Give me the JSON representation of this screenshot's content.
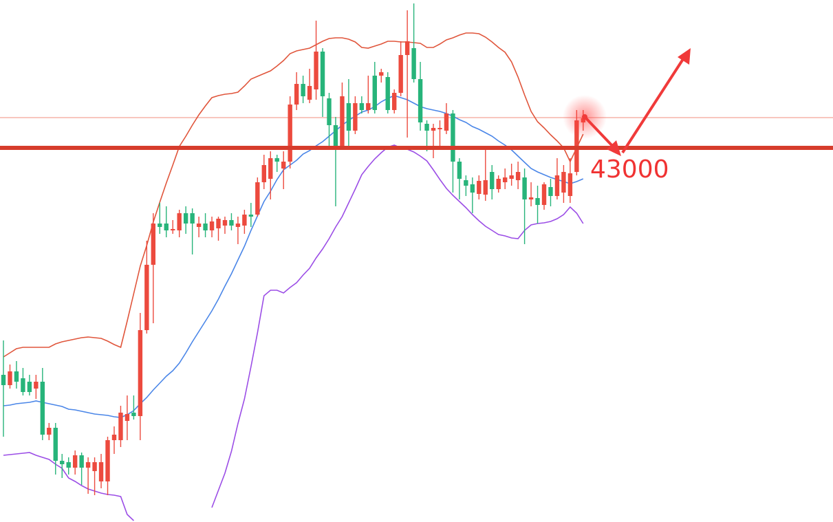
{
  "chart_data": {
    "type": "candlestick",
    "open": [
      39700,
      39550,
      39750,
      39650,
      39600,
      39500,
      39600,
      38830,
      38930,
      38450,
      38430,
      38350,
      38530,
      38350,
      38300,
      38150,
      38150,
      38750,
      38750,
      39030,
      39150,
      39100,
      40350,
      41300,
      41900,
      41900,
      41800,
      41800,
      42050,
      42050,
      41850,
      41900,
      41800,
      41830,
      41870,
      41950,
      41850,
      41870,
      42030,
      42030,
      42500,
      42550,
      42850,
      42700,
      42800,
      43630,
      43930,
      43700,
      43850,
      44400,
      43720,
      43330,
      43030,
      43650,
      43250,
      43650,
      43550,
      44050,
      44050,
      44030,
      43550,
      43800,
      44350,
      44450,
      44000,
      43350,
      43250,
      43270,
      43250,
      43500,
      42800,
      42530,
      42470,
      42330,
      42320,
      42650,
      42400,
      42500,
      42550,
      42530,
      42570,
      42250,
      42270,
      42170,
      42430,
      42300,
      42350,
      42300,
      42650,
      43370
    ],
    "high": [
      40200,
      39850,
      39900,
      39800,
      39700,
      39700,
      39800,
      39000,
      39000,
      38550,
      38500,
      38600,
      38570,
      38500,
      38500,
      38550,
      38800,
      38950,
      39250,
      39400,
      39400,
      40600,
      41650,
      42050,
      42200,
      42150,
      41950,
      42100,
      42150,
      42120,
      42000,
      42050,
      42000,
      42000,
      42000,
      42050,
      42000,
      42100,
      42200,
      42570,
      42900,
      42950,
      42900,
      42950,
      43750,
      44100,
      44050,
      44150,
      44850,
      44450,
      43800,
      43450,
      43950,
      44000,
      43750,
      43750,
      44050,
      44250,
      44150,
      44100,
      43850,
      44550,
      45000,
      45100,
      44250,
      43400,
      43350,
      43400,
      43650,
      43550,
      42850,
      42600,
      42570,
      42600,
      42970,
      42750,
      42600,
      42700,
      42770,
      42800,
      42700,
      42500,
      42450,
      42500,
      42550,
      42850,
      42750,
      42850,
      43550,
      43550
    ],
    "low": [
      38800,
      39500,
      39500,
      39400,
      39400,
      39350,
      38750,
      38750,
      38250,
      38200,
      38250,
      38250,
      38100,
      37970,
      37950,
      38050,
      37950,
      38550,
      38650,
      38750,
      39050,
      38750,
      40300,
      40450,
      41750,
      41700,
      41750,
      41700,
      41750,
      41450,
      41700,
      41700,
      41700,
      41650,
      41750,
      41800,
      41600,
      41750,
      41850,
      42000,
      42400,
      42250,
      42650,
      42400,
      42700,
      43550,
      43650,
      43650,
      43700,
      43450,
      43000,
      42150,
      42970,
      43000,
      43200,
      43500,
      43500,
      43500,
      43950,
      43500,
      43500,
      43750,
      43150,
      43950,
      43250,
      42950,
      42850,
      43000,
      43200,
      42350,
      42250,
      42300,
      42050,
      42250,
      42230,
      42250,
      42350,
      42400,
      42450,
      42400,
      41600,
      42150,
      41900,
      42100,
      42150,
      42250,
      42200,
      42200,
      42600,
      43250
    ],
    "close": [
      39550,
      39750,
      39600,
      39450,
      39450,
      39600,
      38830,
      38930,
      38450,
      38400,
      38350,
      38530,
      38350,
      38430,
      38430,
      38430,
      38750,
      38830,
      39150,
      39130,
      39100,
      40350,
      41300,
      41900,
      41850,
      41800,
      41820,
      42050,
      41900,
      41900,
      41900,
      41800,
      41930,
      41970,
      41950,
      41870,
      41900,
      42030,
      42000,
      42500,
      42750,
      42850,
      42800,
      42800,
      43630,
      43930,
      43750,
      43900,
      44400,
      43750,
      43330,
      43030,
      43750,
      43250,
      43650,
      43550,
      43650,
      43550,
      44100,
      43550,
      43800,
      44350,
      44550,
      44000,
      43370,
      43250,
      43290,
      43290,
      43500,
      42800,
      42550,
      42450,
      42350,
      42520,
      42530,
      42400,
      42550,
      42570,
      42600,
      42650,
      42250,
      42280,
      42170,
      42470,
      42300,
      42600,
      42650,
      42630,
      43400,
      43430
    ],
    "up_color": "#ec4a3e",
    "down_color": "#27b47a",
    "series": [
      {
        "color": "#e0553b",
        "values": [
          39960,
          40020,
          40080,
          40100,
          40100,
          40100,
          40100,
          40100,
          40150,
          40180,
          40200,
          40220,
          40240,
          40250,
          40240,
          40230,
          40190,
          40140,
          40100,
          40480,
          40880,
          41280,
          41580,
          41920,
          42210,
          42490,
          42750,
          43020,
          43170,
          43330,
          43480,
          43610,
          43730,
          43760,
          43780,
          43790,
          43810,
          43900,
          44000,
          44040,
          44080,
          44120,
          44190,
          44270,
          44370,
          44410,
          44430,
          44450,
          44500,
          44550,
          44590,
          44600,
          44600,
          44580,
          44540,
          44460,
          44450,
          44480,
          44510,
          44550,
          44550,
          44540,
          44540,
          44530,
          44520,
          44460,
          44460,
          44510,
          44570,
          44600,
          44640,
          44670,
          44670,
          44660,
          44610,
          44540,
          44460,
          44390,
          44250,
          44030,
          43770,
          43530,
          43380,
          43290,
          43190,
          43100,
          43000,
          42800,
          43000,
          43200
        ]
      },
      {
        "color": "#4a86e8",
        "values": [
          39250,
          39260,
          39280,
          39290,
          39300,
          39320,
          39300,
          39280,
          39260,
          39240,
          39200,
          39190,
          39170,
          39150,
          39130,
          39120,
          39110,
          39090,
          39080,
          39120,
          39180,
          39280,
          39370,
          39480,
          39580,
          39680,
          39760,
          39870,
          40020,
          40180,
          40330,
          40480,
          40630,
          40800,
          40990,
          41170,
          41370,
          41570,
          41800,
          42010,
          42220,
          42370,
          42540,
          42680,
          42750,
          42820,
          42910,
          42960,
          43030,
          43090,
          43170,
          43250,
          43330,
          43400,
          43460,
          43520,
          43550,
          43600,
          43670,
          43720,
          43760,
          43730,
          43700,
          43650,
          43600,
          43570,
          43550,
          43530,
          43500,
          43460,
          43410,
          43370,
          43310,
          43270,
          43220,
          43170,
          43100,
          43040,
          42970,
          42880,
          42790,
          42700,
          42650,
          42610,
          42570,
          42540,
          42510,
          42480,
          42510,
          42550
        ]
      },
      {
        "color": "#9b4de6",
        "values": [
          38530,
          38540,
          38550,
          38560,
          38570,
          38530,
          38500,
          38470,
          38400,
          38340,
          38200,
          38150,
          38090,
          38040,
          38010,
          37980,
          37960,
          37950,
          37930,
          37670,
          37580,
          null,
          null,
          null,
          null,
          null,
          null,
          null,
          null,
          null,
          null,
          null,
          37770,
          38020,
          38270,
          38590,
          38990,
          39350,
          39820,
          40310,
          40850,
          40930,
          40930,
          40890,
          40970,
          41040,
          41150,
          41250,
          41400,
          41530,
          41680,
          41850,
          42000,
          42200,
          42400,
          42610,
          42730,
          42840,
          42930,
          43010,
          43040,
          43000,
          42980,
          42940,
          42880,
          42810,
          42680,
          42540,
          42410,
          42310,
          42220,
          42130,
          42030,
          41940,
          41860,
          41800,
          41740,
          41720,
          41690,
          41680,
          41800,
          41880,
          41900,
          41910,
          41930,
          41970,
          42030,
          42140,
          42050,
          41900
        ]
      }
    ],
    "level": 43000,
    "level_color": "#d63c2c",
    "last_price": 43440,
    "last_price_color": "#f3a398",
    "ylim": [
      37560,
      45150
    ]
  }
}
